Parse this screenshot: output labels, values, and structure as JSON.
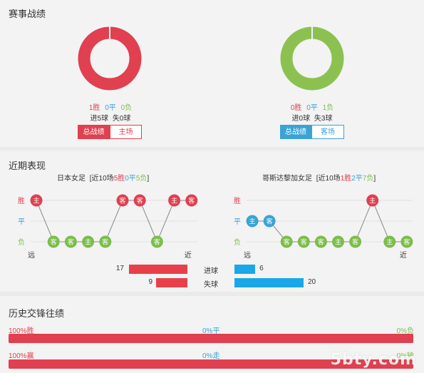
{
  "season_stats": {
    "title": "赛事战绩",
    "home": {
      "wins": "1胜",
      "draws": "0平",
      "losses": "0负",
      "goals": "进5球",
      "conceded": "失0球",
      "btn_total": "总战绩",
      "btn_side": "主场",
      "ring_color": "#e0404f",
      "ring_fraction": 1
    },
    "away": {
      "wins": "0胜",
      "draws": "0平",
      "losses": "1负",
      "goals": "进0球",
      "conceded": "失3球",
      "btn_total": "总战绩",
      "btn_side": "客场",
      "ring_color": "#8cc152",
      "ring_fraction": 1
    }
  },
  "recent_form": {
    "title": "近期表现",
    "home": {
      "name": "日本女足",
      "summary_prefix": "[近10场",
      "wins": "5胜",
      "draws": "0平",
      "losses": "5负",
      "summary_suffix": "]",
      "results": [
        "W",
        "L",
        "L",
        "L",
        "L",
        "W",
        "W",
        "L",
        "W",
        "W"
      ],
      "labels": [
        "主",
        "客",
        "客",
        "主",
        "客",
        "客",
        "客",
        "客",
        "主",
        "客"
      ]
    },
    "away": {
      "name": "哥斯达黎加女足",
      "summary_prefix": "[近10场",
      "wins": "1胜",
      "draws": "2平",
      "losses": "7负",
      "summary_suffix": "]",
      "results": [
        "D",
        "D",
        "L",
        "L",
        "L",
        "L",
        "L",
        "W",
        "L",
        "L"
      ],
      "labels": [
        "主",
        "客",
        "客",
        "客",
        "客",
        "主",
        "客",
        "主",
        "主",
        "客"
      ]
    },
    "y_labels": {
      "win": "胜",
      "draw": "平",
      "loss": "负"
    },
    "x_labels": {
      "far": "远",
      "near": "近"
    },
    "goals_for": {
      "label": "进球",
      "home": 17,
      "away": 6
    },
    "goals_against": {
      "label": "失球",
      "home": 9,
      "away": 20
    }
  },
  "history": {
    "title": "历史交锋往绩",
    "row1": {
      "left": "100%胜",
      "mid": "0%平",
      "right": "0%负",
      "fraction": 1
    },
    "row2": {
      "left": "100%赢",
      "mid": "0%走",
      "right": "0%输",
      "fraction": 1
    }
  },
  "watermark": "5bty.com",
  "colors": {
    "win": "#e0404f",
    "draw": "#3aa3d6",
    "loss": "#7cbd4b",
    "bar_blue": "#1aa7e8"
  }
}
